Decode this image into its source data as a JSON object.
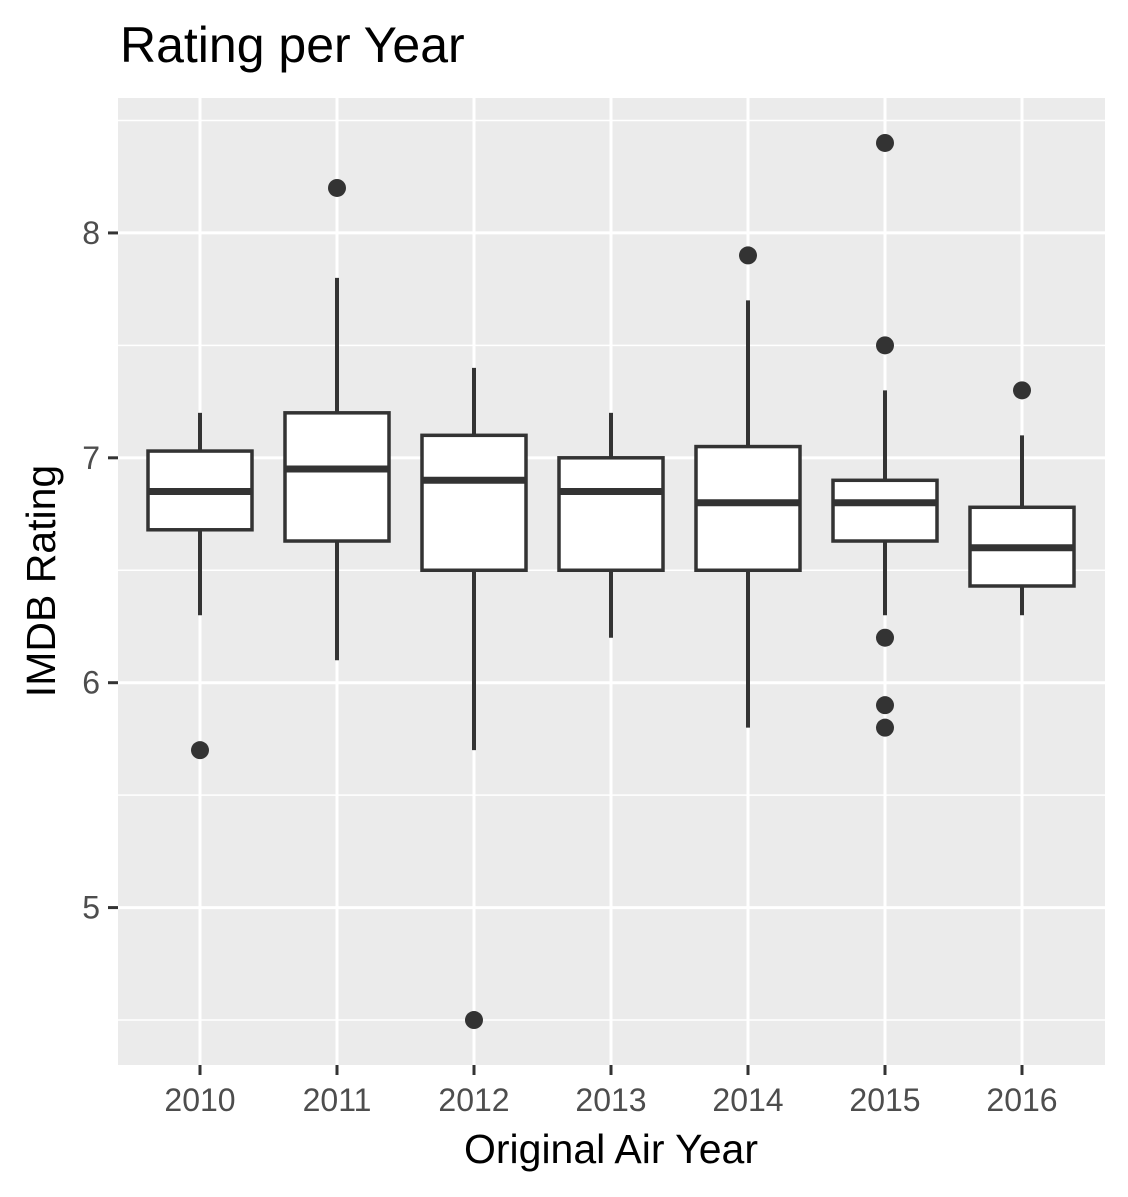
{
  "chart_data": {
    "type": "boxplot",
    "title": "Rating per Year",
    "xlabel": "Original Air Year",
    "ylabel": "IMDB Rating",
    "categories": [
      "2010",
      "2011",
      "2012",
      "2013",
      "2014",
      "2015",
      "2016"
    ],
    "ylim": [
      4.3,
      8.6
    ],
    "yticks": [
      5,
      6,
      7,
      8
    ],
    "ytick_labels": [
      "5",
      "6",
      "7",
      "8"
    ],
    "grid": true,
    "legend": "none",
    "boxes": [
      {
        "category": "2010",
        "lower_whisker": 6.3,
        "q1": 6.68,
        "median": 6.85,
        "q3": 7.03,
        "upper_whisker": 7.2,
        "outliers": [
          5.7
        ]
      },
      {
        "category": "2011",
        "lower_whisker": 6.1,
        "q1": 6.63,
        "median": 6.95,
        "q3": 7.2,
        "upper_whisker": 7.8,
        "outliers": [
          8.2
        ]
      },
      {
        "category": "2012",
        "lower_whisker": 5.7,
        "q1": 6.5,
        "median": 6.9,
        "q3": 7.1,
        "upper_whisker": 7.4,
        "outliers": [
          4.5
        ]
      },
      {
        "category": "2013",
        "lower_whisker": 6.2,
        "q1": 6.5,
        "median": 6.85,
        "q3": 7.0,
        "upper_whisker": 7.2,
        "outliers": []
      },
      {
        "category": "2014",
        "lower_whisker": 5.8,
        "q1": 6.5,
        "median": 6.8,
        "q3": 7.05,
        "upper_whisker": 7.7,
        "outliers": [
          7.9
        ]
      },
      {
        "category": "2015",
        "lower_whisker": 6.3,
        "q1": 6.63,
        "median": 6.8,
        "q3": 6.9,
        "upper_whisker": 7.3,
        "outliers": [
          8.4,
          7.5,
          6.2,
          5.9,
          5.8
        ]
      },
      {
        "category": "2016",
        "lower_whisker": 6.3,
        "q1": 6.43,
        "median": 6.6,
        "q3": 6.78,
        "upper_whisker": 7.1,
        "outliers": [
          7.3
        ]
      }
    ],
    "colors": {
      "panel_background": "#ebebeb",
      "grid": "#ffffff",
      "box_fill": "#ffffff",
      "box_stroke": "#333333",
      "outlier": "#333333"
    }
  }
}
